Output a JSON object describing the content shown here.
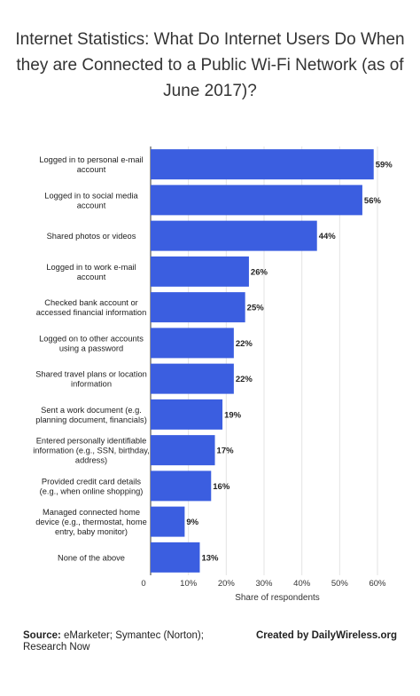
{
  "title": "Internet Statistics: What Do Internet Users Do When they are Connected to a Public Wi-Fi Network (as of June 2017)?",
  "footer": {
    "source_label": "Source:",
    "source_text": "eMarketer; Symantec (Norton); Research Now",
    "credit": "Created by DailyWireless.org"
  },
  "chart_data": {
    "type": "bar",
    "orientation": "horizontal",
    "title": "Internet Statistics: What Do Internet Users Do When they are Connected to a Public Wi-Fi Network (as of June 2017)?",
    "xlabel": "Share of respondents",
    "ylabel": "",
    "xlim": [
      0,
      60
    ],
    "xticks": [
      "0",
      "10%",
      "20%",
      "30%",
      "40%",
      "50%",
      "60%"
    ],
    "grid": true,
    "bar_color": "#3b5ee0",
    "categories": [
      [
        "Logged in to personal e-mail",
        "account"
      ],
      [
        "Logged in to social media",
        "account"
      ],
      [
        "Shared photos or videos"
      ],
      [
        "Logged in to work e-mail",
        "account"
      ],
      [
        "Checked bank account or",
        "accessed financial information"
      ],
      [
        "Logged on to other accounts",
        "using a password"
      ],
      [
        "Shared travel plans or location",
        "information"
      ],
      [
        "Sent a work document (e.g.",
        "planning document, financials)"
      ],
      [
        "Entered personally identifiable",
        "information (e.g., SSN, birthday,",
        "address)"
      ],
      [
        "Provided credit card details",
        "(e.g., when online shopping)"
      ],
      [
        "Managed connected home",
        "device (e.g., thermostat, home",
        "entry, baby monitor)"
      ],
      [
        "None of the above"
      ]
    ],
    "values": [
      59,
      56,
      44,
      26,
      25,
      22,
      22,
      19,
      17,
      16,
      9,
      13
    ],
    "value_labels": [
      "59%",
      "56%",
      "44%",
      "26%",
      "25%",
      "22%",
      "22%",
      "19%",
      "17%",
      "16%",
      "9%",
      "13%"
    ]
  }
}
